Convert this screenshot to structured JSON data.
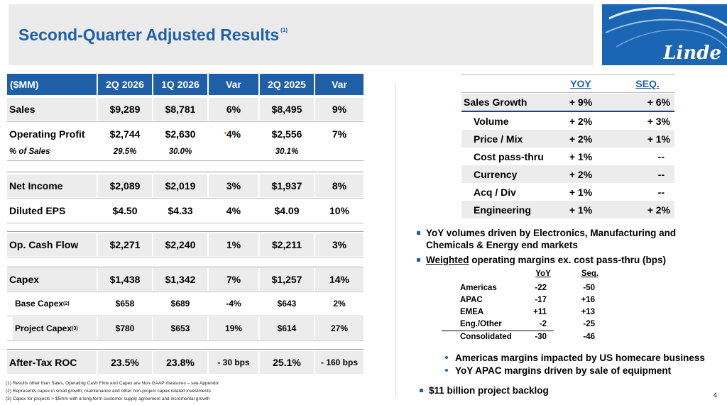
{
  "header": {
    "title": "Second-Quarter Adjusted Results",
    "title_note": "(1)",
    "logo_text": "Linde"
  },
  "left_table": {
    "columns": [
      "($MM)",
      "2Q 2026",
      "1Q 2026",
      "Var",
      "2Q 2025",
      "Var"
    ],
    "rows": [
      {
        "label": "Sales",
        "c1": "$9,289",
        "c2": "$8,781",
        "c3": "6%",
        "c4": "$8,495",
        "c5": "9%"
      },
      {
        "label": "Operating Profit",
        "c1": "$2,744",
        "c2": "$2,630",
        "c3": "4%",
        "c4": "$2,556",
        "c5": "7%"
      },
      {
        "label": "% of Sales",
        "c1": "29.5%",
        "c2": "30.0%",
        "c3": "",
        "c4": "30.1%",
        "c5": ""
      },
      {
        "label": "Net Income",
        "c1": "$2,089",
        "c2": "$2,019",
        "c3": "3%",
        "c4": "$1,937",
        "c5": "8%"
      },
      {
        "label": "Diluted EPS",
        "c1": "$4.50",
        "c2": "$4.33",
        "c3": "4%",
        "c4": "$4.09",
        "c5": "10%"
      },
      {
        "label": "Op. Cash Flow",
        "c1": "$2,271",
        "c2": "$2,240",
        "c3": "1%",
        "c4": "$2,211",
        "c5": "3%"
      },
      {
        "label": "Capex",
        "c1": "$1,438",
        "c2": "$1,342",
        "c3": "7%",
        "c4": "$1,257",
        "c5": "14%"
      },
      {
        "label": "Base Capex",
        "note": "(2)",
        "c1": "$658",
        "c2": "$689",
        "c3": "-4%",
        "c4": "$643",
        "c5": "2%"
      },
      {
        "label": "Project Capex",
        "note": "(3)",
        "c1": "$780",
        "c2": "$653",
        "c3": "19%",
        "c4": "$614",
        "c5": "27%"
      },
      {
        "label": "After-Tax ROC",
        "c1": "23.5%",
        "c2": "23.8%",
        "c3": "- 30 bps",
        "c4": "25.1%",
        "c5": "- 160 bps"
      }
    ]
  },
  "right_table": {
    "headers": [
      "YOY",
      "SEQ."
    ],
    "rows": [
      {
        "label": "Sales Growth",
        "yoy": "+ 9%",
        "seq": "+ 6%"
      },
      {
        "label": "Volume",
        "yoy": "+ 2%",
        "seq": "+ 3%"
      },
      {
        "label": "Price / Mix",
        "yoy": "+ 2%",
        "seq": "+ 1%"
      },
      {
        "label": "Cost pass-thru",
        "yoy": "+ 1%",
        "seq": "--"
      },
      {
        "label": "Currency",
        "yoy": "+ 2%",
        "seq": "--"
      },
      {
        "label": "Acq / Div",
        "yoy": "+ 1%",
        "seq": "--"
      },
      {
        "label": "Engineering",
        "yoy": "+ 1%",
        "seq": "+ 2%"
      }
    ]
  },
  "bullets": {
    "b1": "YoY volumes driven by Electronics, Manufacturing and Chemicals & Energy end markets",
    "b2_underlined": "Weighted",
    "b2_rest": " operating margins ex. cost pass-thru (bps)",
    "sub1": "Americas margins impacted by US homecare business",
    "sub2": "YoY APAC margins driven by sale of equipment",
    "b3": "$11 billion project backlog"
  },
  "margins_table": {
    "headers": [
      "YoY",
      "Seq."
    ],
    "rows": [
      {
        "label": "Americas",
        "yoy": "-22",
        "seq": "-50"
      },
      {
        "label": "APAC",
        "yoy": "-17",
        "seq": "+16"
      },
      {
        "label": "EMEA",
        "yoy": "+11",
        "seq": "+13"
      },
      {
        "label": "Eng./Other",
        "yoy": "-2",
        "seq": "-25"
      },
      {
        "label": "Consolidated",
        "yoy": "-30",
        "seq": "-46"
      }
    ]
  },
  "footnotes": [
    "(1) Results other than Sales, Operating Cash Flow and Capex are Non-GAAP measures – see Appendix",
    "(2) Represents capex in small growth, maintenance and other non-project capex related investments",
    "(3) Capex for projects > $5mm with a long-term customer supply agreement and incremental growth"
  ],
  "page_number": "4",
  "colors": {
    "accent": "#1f5fa8",
    "logo_bg": "#1a66b5",
    "title_bar": "#ebebeb",
    "row_shade": "#ececec",
    "marker": "#f58220"
  }
}
